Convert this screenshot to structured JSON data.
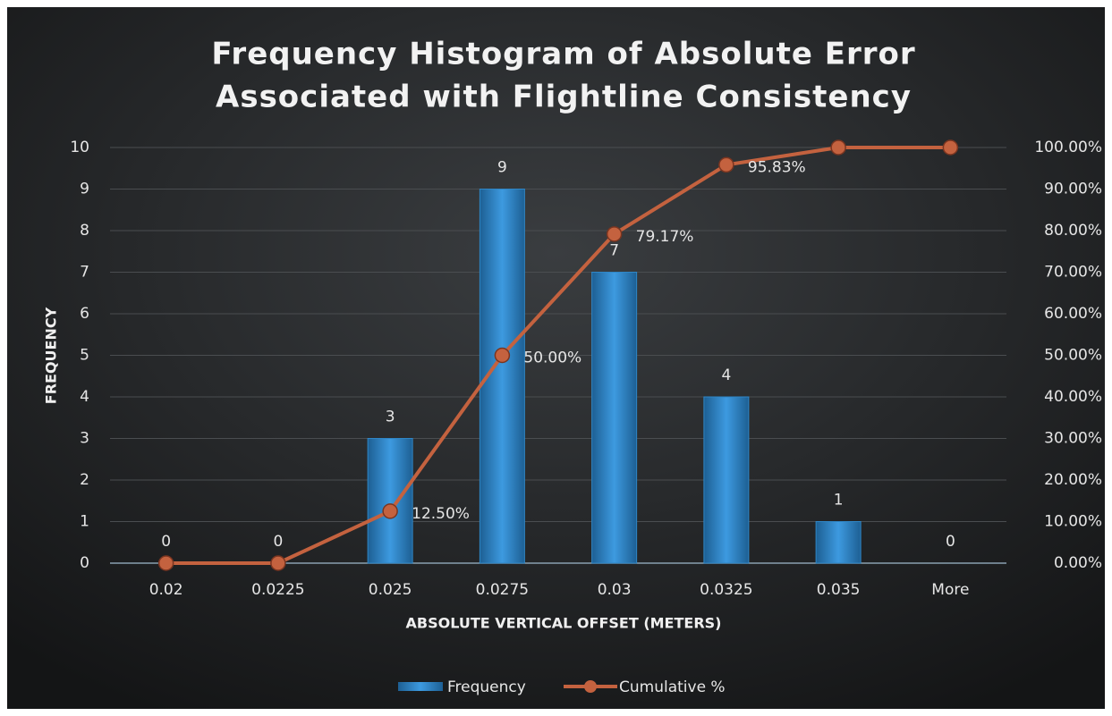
{
  "chart_data": {
    "type": "bar_line",
    "title": [
      "Frequency Histogram of Absolute Error",
      "Associated with Flightline Consistency"
    ],
    "x_label": "ABSOLUTE VERTICAL OFFSET (METERS)",
    "y_label": "FREQUENCY",
    "categories": [
      "0.02",
      "0.0225",
      "0.025",
      "0.0275",
      "0.03",
      "0.0325",
      "0.035",
      "More"
    ],
    "series": [
      {
        "name": "Frequency",
        "color": "#2f86c6",
        "type": "bar",
        "values": [
          0,
          0,
          3,
          9,
          7,
          4,
          1,
          0
        ]
      },
      {
        "name": "Cumulative %",
        "color": "#c4623f",
        "type": "line",
        "axis": "y2",
        "values": [
          0,
          0,
          12.5,
          50,
          79.17,
          95.83,
          100,
          100
        ],
        "value_labels": [
          null,
          null,
          "12.50%",
          "50.00%",
          "79.17%",
          "95.83%",
          null,
          null
        ]
      }
    ],
    "ylim": [
      0,
      10
    ],
    "yticks": [
      0,
      1,
      2,
      3,
      4,
      5,
      6,
      7,
      8,
      9,
      10
    ],
    "y2lim": [
      0,
      100
    ],
    "y2ticks": [
      {
        "value": 0,
        "label": "0.00%"
      },
      {
        "value": 10,
        "label": "10.00%"
      },
      {
        "value": 20,
        "label": "20.00%"
      },
      {
        "value": 30,
        "label": "30.00%"
      },
      {
        "value": 40,
        "label": "40.00%"
      },
      {
        "value": 50,
        "label": "50.00%"
      },
      {
        "value": 60,
        "label": "60.00%"
      },
      {
        "value": 70,
        "label": "70.00%"
      },
      {
        "value": 80,
        "label": "80.00%"
      },
      {
        "value": 90,
        "label": "90.00%"
      },
      {
        "value": 100,
        "label": "100.00%"
      }
    ],
    "grid": true,
    "legend": "bottom"
  }
}
